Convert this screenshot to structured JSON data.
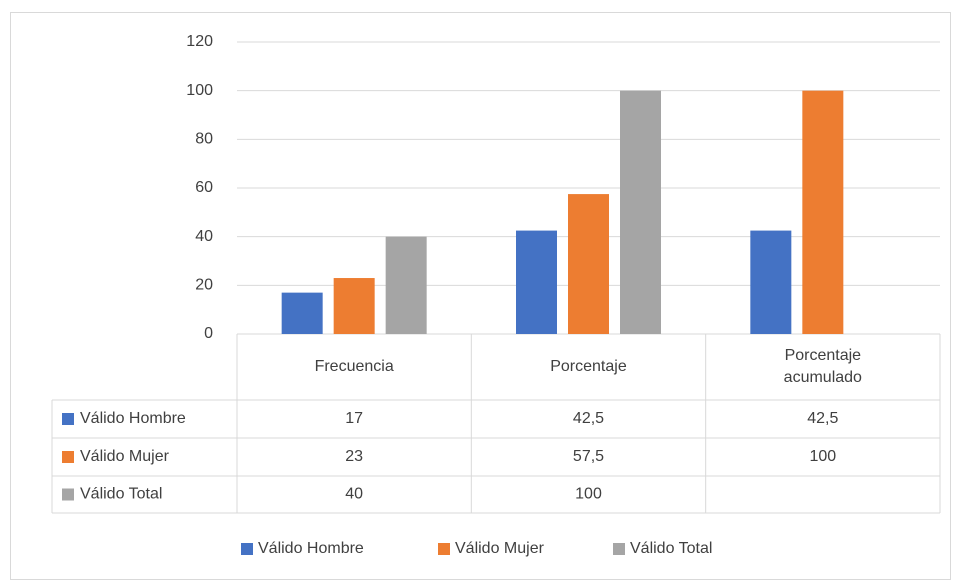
{
  "chart_data": {
    "type": "bar",
    "categories": [
      "Frecuencia",
      "Porcentaje",
      "Porcentaje acumulado"
    ],
    "series": [
      {
        "name": "Válido Hombre",
        "color": "#4472c4",
        "values": [
          17,
          42.5,
          42.5
        ],
        "value_labels": [
          "17",
          "42,5",
          "42,5"
        ]
      },
      {
        "name": "Válido Mujer",
        "color": "#ed7d31",
        "values": [
          23,
          57.5,
          100
        ],
        "value_labels": [
          "23",
          "57,5",
          "100"
        ]
      },
      {
        "name": "Válido Total",
        "color": "#a5a5a5",
        "values": [
          40,
          100,
          null
        ],
        "value_labels": [
          "40",
          "100",
          null
        ]
      }
    ],
    "ylim": [
      0,
      120
    ],
    "yticks": [
      0,
      20,
      40,
      60,
      80,
      100,
      120
    ],
    "grid": true,
    "legend": "bottom"
  }
}
